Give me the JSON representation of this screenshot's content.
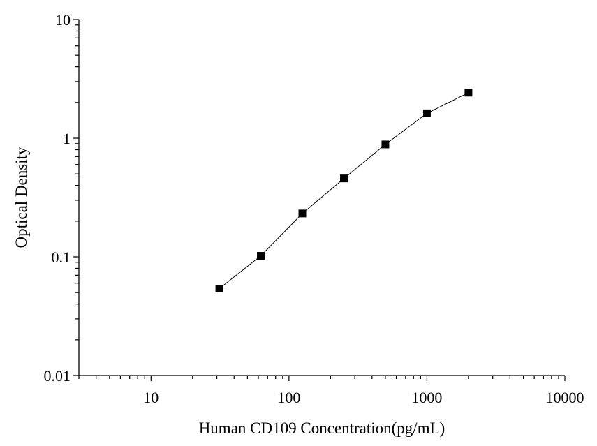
{
  "chart_data": {
    "type": "scatter",
    "title": "",
    "xlabel": "Human CD109 Concentration(pg/mL)",
    "ylabel": "Optical Density",
    "xscale": "log",
    "yscale": "log",
    "xlim": [
      3,
      10000
    ],
    "ylim": [
      0.01,
      10
    ],
    "x_ticks": [
      10,
      100,
      1000,
      10000
    ],
    "x_tick_labels": [
      "10",
      "100",
      "1000",
      "10000"
    ],
    "y_ticks": [
      0.01,
      0.1,
      1,
      10
    ],
    "y_tick_labels": [
      "0.01",
      "0.1",
      "1",
      "10"
    ],
    "grid": false,
    "legend": "none",
    "series": [
      {
        "marker": "square",
        "line": true,
        "color": "#000000",
        "x": [
          31.25,
          62.5,
          125,
          250,
          500,
          1000,
          2000
        ],
        "y": [
          0.054,
          0.102,
          0.232,
          0.458,
          0.886,
          1.62,
          2.42
        ]
      }
    ]
  }
}
